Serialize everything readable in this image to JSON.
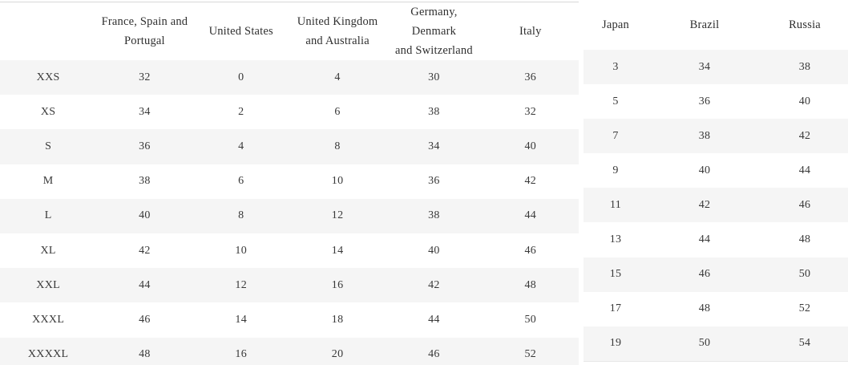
{
  "colors": {
    "background": "#ffffff",
    "row_stripe": "#f5f5f5",
    "text": "#383838",
    "left_table_top_border": "#d8d8d8",
    "right_table_bottom_border": "#e7e7e7"
  },
  "chart_data": [
    {
      "type": "table",
      "columns": [
        "",
        "France, Spain and\nPortugal",
        "United States",
        "United Kingdom\nand Australia",
        "Germany, Denmark\nand Switzerland",
        "Italy"
      ],
      "rows": [
        [
          "XXS",
          "32",
          "0",
          "4",
          "30",
          "36"
        ],
        [
          "XS",
          "34",
          "2",
          "6",
          "38",
          "32"
        ],
        [
          "S",
          "36",
          "4",
          "8",
          "34",
          "40"
        ],
        [
          "M",
          "38",
          "6",
          "10",
          "36",
          "42"
        ],
        [
          "L",
          "40",
          "8",
          "12",
          "38",
          "44"
        ],
        [
          "XL",
          "42",
          "10",
          "14",
          "40",
          "46"
        ],
        [
          "XXL",
          "44",
          "12",
          "16",
          "42",
          "48"
        ],
        [
          "XXXL",
          "46",
          "14",
          "18",
          "44",
          "50"
        ],
        [
          "XXXXL",
          "48",
          "16",
          "20",
          "46",
          "52"
        ]
      ],
      "layout": {
        "stripe": "odd-rows",
        "grid": "off"
      }
    },
    {
      "type": "table",
      "columns": [
        "Japan",
        "Brazil",
        "Russia"
      ],
      "rows": [
        [
          "3",
          "34",
          "38"
        ],
        [
          "5",
          "36",
          "40"
        ],
        [
          "7",
          "38",
          "42"
        ],
        [
          "9",
          "40",
          "44"
        ],
        [
          "11",
          "42",
          "46"
        ],
        [
          "13",
          "44",
          "48"
        ],
        [
          "15",
          "46",
          "50"
        ],
        [
          "17",
          "48",
          "52"
        ],
        [
          "19",
          "50",
          "54"
        ]
      ],
      "layout": {
        "stripe": "odd-rows",
        "grid": "off"
      }
    }
  ]
}
